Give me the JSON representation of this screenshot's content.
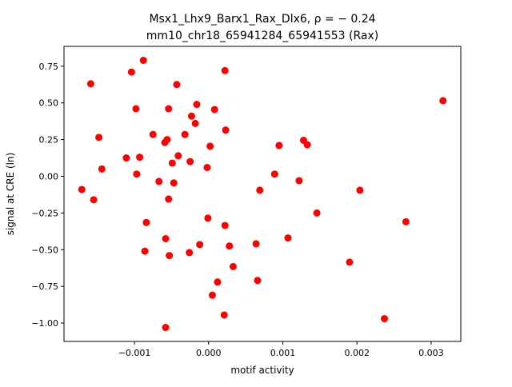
{
  "chart_data": {
    "type": "scatter",
    "title_line1": "Msx1_Lhx9_Barx1_Rax_Dlx6, ρ = − 0.24",
    "title_line2": "mm10_chr18_65941284_65941553 (Rax)",
    "xlabel": "motif activity",
    "ylabel": "signal at CRE (ln)",
    "xlim": [
      -0.00195,
      0.0034
    ],
    "ylim": [
      -1.125,
      0.885
    ],
    "xticks": [
      {
        "value": -0.001,
        "label": "−0.001"
      },
      {
        "value": 0.0,
        "label": "0.000"
      },
      {
        "value": 0.001,
        "label": "0.001"
      },
      {
        "value": 0.002,
        "label": "0.002"
      },
      {
        "value": 0.003,
        "label": "0.003"
      }
    ],
    "yticks": [
      {
        "value": 0.75,
        "label": "0.75"
      },
      {
        "value": 0.5,
        "label": "0.50"
      },
      {
        "value": 0.25,
        "label": "0.25"
      },
      {
        "value": 0.0,
        "label": "0.00"
      },
      {
        "value": -0.25,
        "label": "−0.25"
      },
      {
        "value": -0.5,
        "label": "−0.50"
      },
      {
        "value": -0.75,
        "label": "−0.75"
      },
      {
        "value": -1.0,
        "label": "−1.00"
      }
    ],
    "grid": false,
    "marker_color": "#ff0000",
    "points": [
      {
        "x": -0.00171,
        "y": -0.09
      },
      {
        "x": -0.00159,
        "y": 0.63
      },
      {
        "x": -0.00155,
        "y": -0.16
      },
      {
        "x": -0.00148,
        "y": 0.265
      },
      {
        "x": -0.00144,
        "y": 0.05
      },
      {
        "x": -0.00111,
        "y": 0.125
      },
      {
        "x": -0.00104,
        "y": 0.71
      },
      {
        "x": -0.00098,
        "y": 0.46
      },
      {
        "x": -0.00097,
        "y": 0.015
      },
      {
        "x": -0.00093,
        "y": 0.13
      },
      {
        "x": -0.00088,
        "y": 0.79
      },
      {
        "x": -0.00086,
        "y": -0.51
      },
      {
        "x": -0.00084,
        "y": -0.315
      },
      {
        "x": -0.00075,
        "y": 0.285
      },
      {
        "x": -0.00067,
        "y": -0.035
      },
      {
        "x": -0.00059,
        "y": 0.23
      },
      {
        "x": -0.00058,
        "y": -0.425
      },
      {
        "x": -0.00056,
        "y": 0.25
      },
      {
        "x": -0.00054,
        "y": -0.155
      },
      {
        "x": -0.00054,
        "y": 0.46
      },
      {
        "x": -0.00053,
        "y": -0.54
      },
      {
        "x": -0.00058,
        "y": -1.03
      },
      {
        "x": -0.00049,
        "y": 0.09
      },
      {
        "x": -0.00047,
        "y": -0.045
      },
      {
        "x": -0.00043,
        "y": 0.625
      },
      {
        "x": -0.00041,
        "y": 0.14
      },
      {
        "x": -0.00032,
        "y": 0.285
      },
      {
        "x": -0.00026,
        "y": -0.52
      },
      {
        "x": -0.00025,
        "y": 0.1
      },
      {
        "x": -0.00023,
        "y": 0.41
      },
      {
        "x": -0.00018,
        "y": 0.36
      },
      {
        "x": -0.00016,
        "y": 0.49
      },
      {
        "x": -0.00012,
        "y": -0.465
      },
      {
        "x": -2e-05,
        "y": 0.06
      },
      {
        "x": -1e-05,
        "y": -0.285
      },
      {
        "x": 2e-05,
        "y": 0.205
      },
      {
        "x": 5e-05,
        "y": -0.81
      },
      {
        "x": 8e-05,
        "y": 0.455
      },
      {
        "x": 0.00012,
        "y": -0.72
      },
      {
        "x": 0.00021,
        "y": -0.945
      },
      {
        "x": 0.00022,
        "y": 0.72
      },
      {
        "x": 0.00022,
        "y": -0.335
      },
      {
        "x": 0.00023,
        "y": 0.315
      },
      {
        "x": 0.00028,
        "y": -0.475
      },
      {
        "x": 0.00033,
        "y": -0.615
      },
      {
        "x": 0.00064,
        "y": -0.46
      },
      {
        "x": 0.00066,
        "y": -0.71
      },
      {
        "x": 0.00069,
        "y": -0.095
      },
      {
        "x": 0.00089,
        "y": 0.015
      },
      {
        "x": 0.00095,
        "y": 0.21
      },
      {
        "x": 0.00107,
        "y": -0.42
      },
      {
        "x": 0.00122,
        "y": -0.03
      },
      {
        "x": 0.00128,
        "y": 0.245
      },
      {
        "x": 0.00133,
        "y": 0.215
      },
      {
        "x": 0.00146,
        "y": -0.25
      },
      {
        "x": 0.0019,
        "y": -0.585
      },
      {
        "x": 0.00204,
        "y": -0.095
      },
      {
        "x": 0.00237,
        "y": -0.97
      },
      {
        "x": 0.00266,
        "y": -0.31
      },
      {
        "x": 0.00316,
        "y": 0.515
      }
    ]
  }
}
